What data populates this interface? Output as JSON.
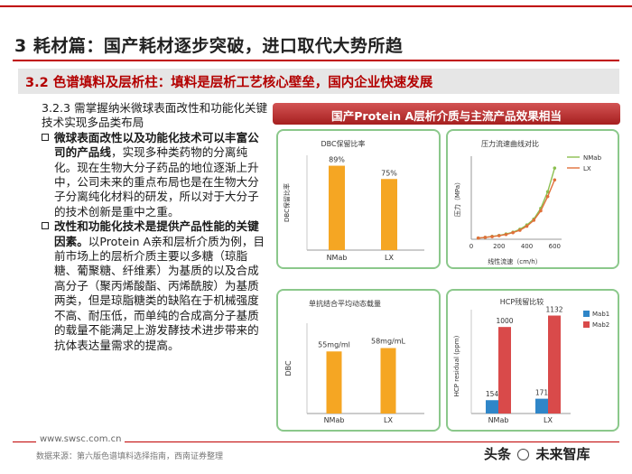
{
  "header": {
    "title": "3 耗材篇：国产耗材逐步突破，进口取代大势所趋",
    "subtitle": "3.2 色谱填料及层析柱：填料是层析工艺核心壁垒，国内企业快速发展"
  },
  "left": {
    "section": "3.2.3 需掌握纳米微球表面改性和功能化关键技术实现多品类布局",
    "bullets": [
      {
        "bold": "微球表面改性以及功能化技术可以丰富公司的产品线",
        "text": "，实现多种类药物的分离纯化。现在生物大分子药品的地位逐渐上升中，公司未来的重点布局也是在生物大分子分离纯化材料的研发，所以对于大分子的技术创新是重中之重。"
      },
      {
        "bold": "改性和功能化技术是提供产品性能的关键因素。",
        "text": "以Protein A亲和层析介质为例，目前市场上的层析介质主要以多糖（琼脂糖、葡聚糖、纤维素）为基质的以及合成高分子（聚丙烯酸酯、丙烯酰胺）为基质两类，但是琼脂糖类的缺陷在于机械强度不高、耐压低，而单纯的合成高分子基质的载量不能满足上游发酵技术进步带来的抗体表达量需求的提高。"
      }
    ]
  },
  "banner": "国产Protein A层析介质与主流产品效果相当",
  "colors": {
    "accent": "#c00000",
    "bar": "#f5a623",
    "line_a": "#8bbf4f",
    "line_b": "#e0703a",
    "hcp_a": "#2f86c8",
    "hcp_b": "#d94a4a"
  },
  "chart_data": [
    {
      "type": "bar",
      "title": "DBC保留比率",
      "ylabel": "DBC保留比率",
      "categories": [
        "NMab",
        "LX"
      ],
      "values": [
        89,
        75
      ],
      "labels": [
        "89%",
        "75%"
      ],
      "ylim": [
        0,
        100
      ]
    },
    {
      "type": "line",
      "title": "压力流速曲线对比",
      "ylabel": "压力（MPa）",
      "xlabel": "线性流速（cm/h）",
      "xticks": [
        "0",
        "200",
        "400",
        "600"
      ],
      "xlim": [
        0,
        650
      ],
      "ylim": [
        0,
        0.35
      ],
      "series": [
        {
          "name": "NMab",
          "x": [
            50,
            100,
            150,
            200,
            250,
            300,
            350,
            400,
            450,
            500,
            550,
            600
          ],
          "y": [
            0.005,
            0.008,
            0.012,
            0.016,
            0.022,
            0.03,
            0.042,
            0.06,
            0.085,
            0.13,
            0.2,
            0.3
          ]
        },
        {
          "name": "LX",
          "x": [
            50,
            100,
            150,
            200,
            250,
            300,
            350,
            400,
            450,
            500,
            550,
            600
          ],
          "y": [
            0.005,
            0.008,
            0.011,
            0.015,
            0.02,
            0.028,
            0.038,
            0.055,
            0.08,
            0.12,
            0.18,
            0.25
          ]
        }
      ]
    },
    {
      "type": "bar",
      "title": "单抗结合平均动态载量",
      "ylabel": "DBC",
      "categories": [
        "NMab",
        "LX"
      ],
      "values": [
        55,
        58
      ],
      "labels": [
        "55mg/ml",
        "58mg/mL"
      ],
      "ylim": [
        0,
        80
      ]
    },
    {
      "type": "bar",
      "title": "HCP残留比较",
      "ylabel": "HCP residual (ppm)",
      "categories": [
        "NMab",
        "LX"
      ],
      "series": [
        {
          "name": "Mab1",
          "values": [
            154,
            171
          ]
        },
        {
          "name": "Mab2",
          "values": [
            1000,
            1132
          ]
        }
      ],
      "ylim": [
        0,
        1200
      ]
    }
  ],
  "footer": {
    "url": "www.swsc.com.cn",
    "source": "数据来源：第六版色谱填料选择指南，西南证券整理",
    "watermark_a": "头条",
    "watermark_b": "未来智库"
  }
}
